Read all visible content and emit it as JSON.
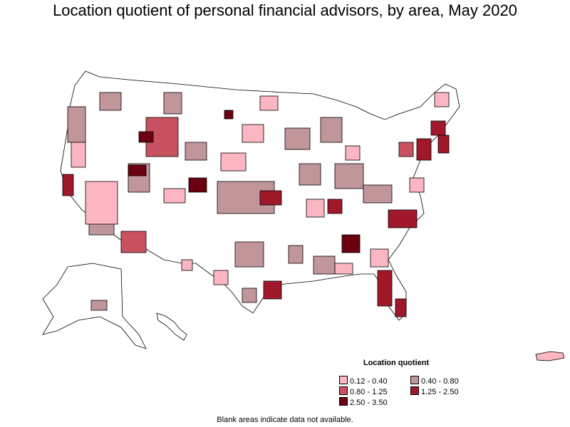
{
  "title": "Location quotient of personal financial advisors, by area, May 2020",
  "legend": {
    "title": "Location quotient",
    "items": [
      {
        "label": "0.12 - 0.40",
        "color": "#fbb6c1"
      },
      {
        "label": "0.40 - 0.80",
        "color": "#c0969b"
      },
      {
        "label": "0.80 - 1.25",
        "color": "#c8525f"
      },
      {
        "label": "1.25 - 2.50",
        "color": "#a0182a"
      },
      {
        "label": "2.50 - 3.50",
        "color": "#6a0010"
      }
    ]
  },
  "note": "Blank areas indicate data not available.",
  "colors": {
    "none": "#ffffff",
    "low": "#fbb6c1",
    "midlow": "#c0969b",
    "mid": "#c8525f",
    "high": "#a0182a",
    "top": "#6a0010"
  }
}
